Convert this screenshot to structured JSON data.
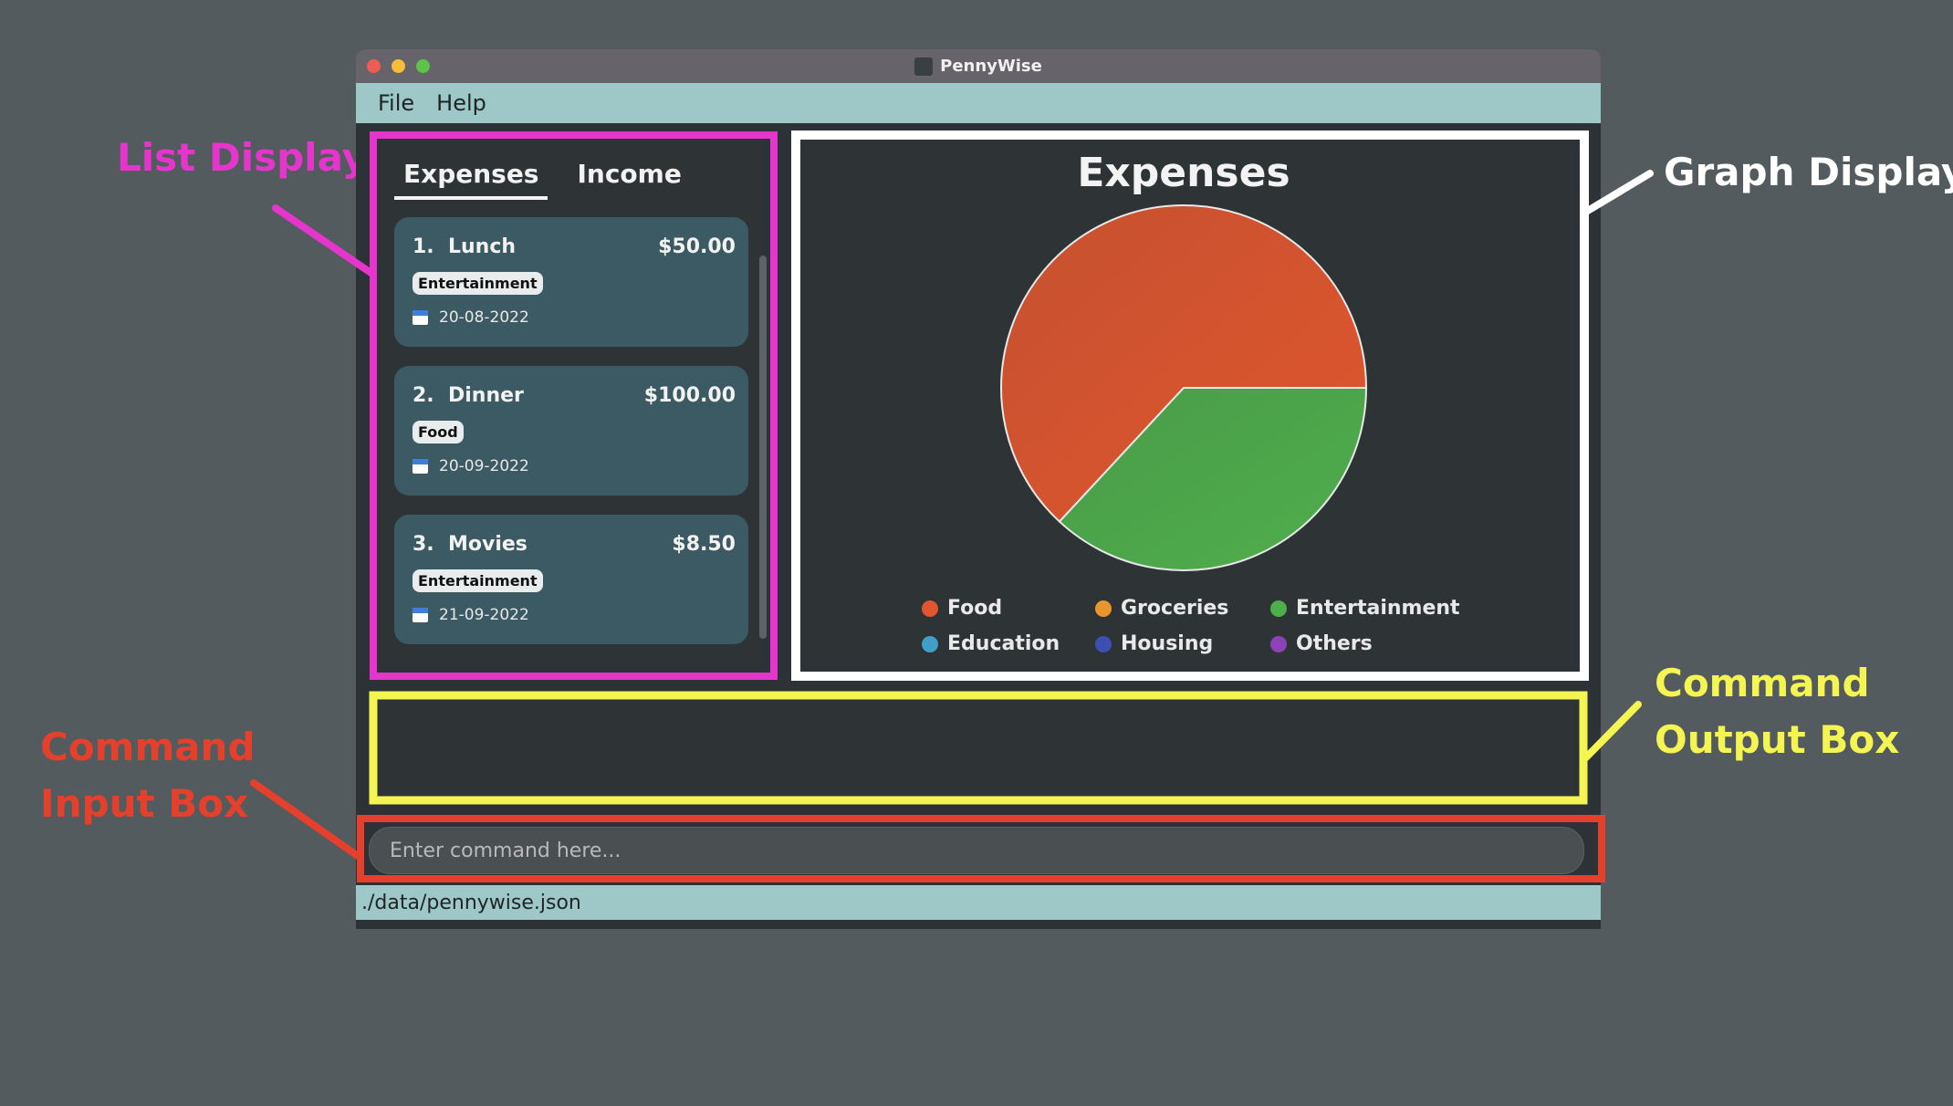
{
  "window": {
    "title": "PennyWise"
  },
  "menu": {
    "items": [
      "File",
      "Help"
    ]
  },
  "annotations": {
    "list_display": "List Display",
    "graph_display": "Graph Display",
    "command_output": [
      "Command",
      "Output Box"
    ],
    "command_input": [
      "Command",
      "Input Box"
    ]
  },
  "tabs": [
    "Expenses",
    "Income"
  ],
  "entries": [
    {
      "index": "1.",
      "name": "Lunch",
      "amount": "$50.00",
      "tag": "Entertainment",
      "date": "20-08-2022"
    },
    {
      "index": "2.",
      "name": "Dinner",
      "amount": "$100.00",
      "tag": "Food",
      "date": "20-09-2022"
    },
    {
      "index": "3.",
      "name": "Movies",
      "amount": "$8.50",
      "tag": "Entertainment",
      "date": "21-09-2022"
    }
  ],
  "chart_data": {
    "type": "pie",
    "title": "Expenses",
    "categories": [
      "Food",
      "Groceries",
      "Entertainment",
      "Education",
      "Housing",
      "Others"
    ],
    "values": [
      100.0,
      0,
      58.5,
      0,
      0,
      0
    ],
    "colors": [
      "#e0562e",
      "#e9962e",
      "#4fae4c",
      "#3f9fc6",
      "#3d4fb3",
      "#8d42b8"
    ],
    "legend_position": "bottom"
  },
  "command_input": {
    "placeholder": "Enter command here..."
  },
  "status_bar": {
    "path": "./data/pennywise.json"
  },
  "colors": {
    "list_highlight": "#e635cc",
    "graph_highlight": "#ffffff",
    "output_highlight": "#f5f552",
    "input_highlight": "#e5402b"
  }
}
